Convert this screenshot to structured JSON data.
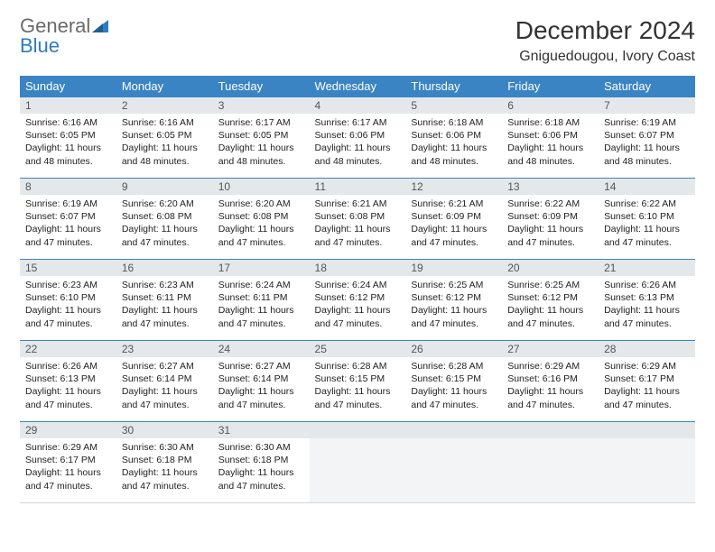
{
  "brand": {
    "word1": "General",
    "word2": "Blue",
    "word1_color": "#6a6a6a",
    "word2_color": "#2f7bbf",
    "sail_color": "#2f7bbf"
  },
  "title": "December 2024",
  "location": "Gniguedougou, Ivory Coast",
  "colors": {
    "header_bg": "#3b84c4",
    "daynum_bg": "#e4e8eb",
    "row_border": "#3b84c4"
  },
  "weekdays": [
    "Sunday",
    "Monday",
    "Tuesday",
    "Wednesday",
    "Thursday",
    "Friday",
    "Saturday"
  ],
  "days": [
    {
      "n": 1,
      "sunrise": "6:16 AM",
      "sunset": "6:05 PM",
      "daylight": "11 hours and 48 minutes."
    },
    {
      "n": 2,
      "sunrise": "6:16 AM",
      "sunset": "6:05 PM",
      "daylight": "11 hours and 48 minutes."
    },
    {
      "n": 3,
      "sunrise": "6:17 AM",
      "sunset": "6:05 PM",
      "daylight": "11 hours and 48 minutes."
    },
    {
      "n": 4,
      "sunrise": "6:17 AM",
      "sunset": "6:06 PM",
      "daylight": "11 hours and 48 minutes."
    },
    {
      "n": 5,
      "sunrise": "6:18 AM",
      "sunset": "6:06 PM",
      "daylight": "11 hours and 48 minutes."
    },
    {
      "n": 6,
      "sunrise": "6:18 AM",
      "sunset": "6:06 PM",
      "daylight": "11 hours and 48 minutes."
    },
    {
      "n": 7,
      "sunrise": "6:19 AM",
      "sunset": "6:07 PM",
      "daylight": "11 hours and 48 minutes."
    },
    {
      "n": 8,
      "sunrise": "6:19 AM",
      "sunset": "6:07 PM",
      "daylight": "11 hours and 47 minutes."
    },
    {
      "n": 9,
      "sunrise": "6:20 AM",
      "sunset": "6:08 PM",
      "daylight": "11 hours and 47 minutes."
    },
    {
      "n": 10,
      "sunrise": "6:20 AM",
      "sunset": "6:08 PM",
      "daylight": "11 hours and 47 minutes."
    },
    {
      "n": 11,
      "sunrise": "6:21 AM",
      "sunset": "6:08 PM",
      "daylight": "11 hours and 47 minutes."
    },
    {
      "n": 12,
      "sunrise": "6:21 AM",
      "sunset": "6:09 PM",
      "daylight": "11 hours and 47 minutes."
    },
    {
      "n": 13,
      "sunrise": "6:22 AM",
      "sunset": "6:09 PM",
      "daylight": "11 hours and 47 minutes."
    },
    {
      "n": 14,
      "sunrise": "6:22 AM",
      "sunset": "6:10 PM",
      "daylight": "11 hours and 47 minutes."
    },
    {
      "n": 15,
      "sunrise": "6:23 AM",
      "sunset": "6:10 PM",
      "daylight": "11 hours and 47 minutes."
    },
    {
      "n": 16,
      "sunrise": "6:23 AM",
      "sunset": "6:11 PM",
      "daylight": "11 hours and 47 minutes."
    },
    {
      "n": 17,
      "sunrise": "6:24 AM",
      "sunset": "6:11 PM",
      "daylight": "11 hours and 47 minutes."
    },
    {
      "n": 18,
      "sunrise": "6:24 AM",
      "sunset": "6:12 PM",
      "daylight": "11 hours and 47 minutes."
    },
    {
      "n": 19,
      "sunrise": "6:25 AM",
      "sunset": "6:12 PM",
      "daylight": "11 hours and 47 minutes."
    },
    {
      "n": 20,
      "sunrise": "6:25 AM",
      "sunset": "6:12 PM",
      "daylight": "11 hours and 47 minutes."
    },
    {
      "n": 21,
      "sunrise": "6:26 AM",
      "sunset": "6:13 PM",
      "daylight": "11 hours and 47 minutes."
    },
    {
      "n": 22,
      "sunrise": "6:26 AM",
      "sunset": "6:13 PM",
      "daylight": "11 hours and 47 minutes."
    },
    {
      "n": 23,
      "sunrise": "6:27 AM",
      "sunset": "6:14 PM",
      "daylight": "11 hours and 47 minutes."
    },
    {
      "n": 24,
      "sunrise": "6:27 AM",
      "sunset": "6:14 PM",
      "daylight": "11 hours and 47 minutes."
    },
    {
      "n": 25,
      "sunrise": "6:28 AM",
      "sunset": "6:15 PM",
      "daylight": "11 hours and 47 minutes."
    },
    {
      "n": 26,
      "sunrise": "6:28 AM",
      "sunset": "6:15 PM",
      "daylight": "11 hours and 47 minutes."
    },
    {
      "n": 27,
      "sunrise": "6:29 AM",
      "sunset": "6:16 PM",
      "daylight": "11 hours and 47 minutes."
    },
    {
      "n": 28,
      "sunrise": "6:29 AM",
      "sunset": "6:17 PM",
      "daylight": "11 hours and 47 minutes."
    },
    {
      "n": 29,
      "sunrise": "6:29 AM",
      "sunset": "6:17 PM",
      "daylight": "11 hours and 47 minutes."
    },
    {
      "n": 30,
      "sunrise": "6:30 AM",
      "sunset": "6:18 PM",
      "daylight": "11 hours and 47 minutes."
    },
    {
      "n": 31,
      "sunrise": "6:30 AM",
      "sunset": "6:18 PM",
      "daylight": "11 hours and 47 minutes."
    }
  ],
  "labels": {
    "sunrise": "Sunrise:",
    "sunset": "Sunset:",
    "daylight": "Daylight:"
  },
  "first_day_of_week_index": 0,
  "trailing_empty": 4
}
